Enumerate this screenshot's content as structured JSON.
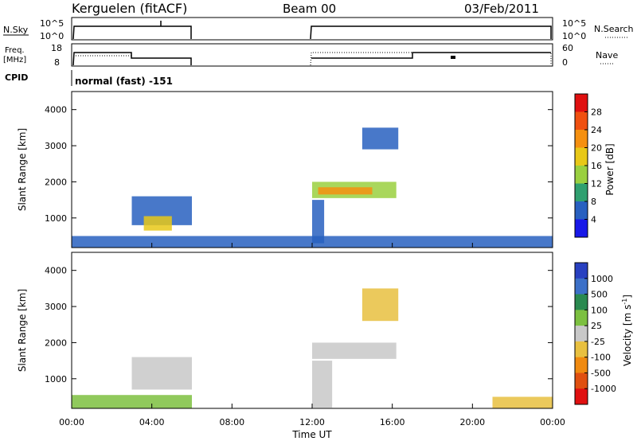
{
  "header": {
    "station": "Kerguelen (fitACF)",
    "beam": "Beam 00",
    "date": "03/Feb/2011"
  },
  "panels": {
    "nsky_label": "N.Sky",
    "nsky_ticks": [
      "10^5",
      "10^0"
    ],
    "nsearch_label": "N.Search",
    "nsearch_ticks": [
      "10^5",
      "10^0"
    ],
    "freq_label_1": "Freq.",
    "freq_label_2": "[MHz]",
    "freq_ticks": [
      "18",
      "8"
    ],
    "nave_label": "Nave",
    "nave_ticks": [
      "60",
      "0"
    ],
    "cpid_label": "CPID",
    "cpid_value": "normal (fast) -151"
  },
  "axes": {
    "ylabel": "Slant Range [km]",
    "yticks": [
      "1000",
      "2000",
      "3000",
      "4000"
    ],
    "xlabel": "Time UT",
    "xticks": [
      "00:00",
      "04:00",
      "08:00",
      "12:00",
      "16:00",
      "20:00",
      "00:00"
    ]
  },
  "colorbars": {
    "power_label": "Power [dB]",
    "power_ticks": [
      "28",
      "24",
      "20",
      "16",
      "12",
      "8",
      "4"
    ],
    "power_colors": [
      "#e01010",
      "#f05010",
      "#f59010",
      "#e8c818",
      "#9ad040",
      "#30a070",
      "#2860c0",
      "#1818e8"
    ],
    "velocity_label_main": "Velocity",
    "velocity_label_unit": "[m s",
    "velocity_label_exp": "-1",
    "velocity_label_close": "]",
    "velocity_ticks": [
      "1000",
      "500",
      "100",
      "25",
      "-25",
      "-100",
      "-500",
      "-1000"
    ],
    "velocity_colors": [
      "#2840c0",
      "#3c70c8",
      "#2a8a50",
      "#7cc040",
      "#c8c8c8",
      "#e8c040",
      "#f08a10",
      "#e05010",
      "#e01010"
    ]
  },
  "chart_data": [
    {
      "type": "heatmap",
      "title": "Power [dB]",
      "xlabel": "Time UT",
      "ylabel": "Slant Range [km]",
      "xlim": [
        0,
        24
      ],
      "ylim": [
        180,
        4500
      ],
      "colorbar_range": [
        0,
        30
      ],
      "regions": [
        {
          "t0": 3.0,
          "t1": 6.0,
          "r0": 800,
          "r1": 1600,
          "value": 6
        },
        {
          "t0": 3.6,
          "t1": 5.0,
          "r0": 650,
          "r1": 1050,
          "value": 18
        },
        {
          "t0": 12.0,
          "t1": 16.2,
          "r0": 1550,
          "r1": 2000,
          "value": 14
        },
        {
          "t0": 12.3,
          "t1": 15.0,
          "r0": 1650,
          "r1": 1850,
          "value": 20
        },
        {
          "t0": 14.5,
          "t1": 16.3,
          "r0": 2900,
          "r1": 3500,
          "value": 6
        },
        {
          "t0": 12.0,
          "t1": 12.6,
          "r0": 300,
          "r1": 1500,
          "value": 5
        },
        {
          "t0": 0.0,
          "t1": 24.0,
          "r0": 180,
          "r1": 500,
          "value": 5
        }
      ]
    },
    {
      "type": "heatmap",
      "title": "Velocity [m s-1]",
      "xlabel": "Time UT",
      "ylabel": "Slant Range [km]",
      "xlim": [
        0,
        24
      ],
      "ylim": [
        180,
        4500
      ],
      "colorbar_range": [
        -1000,
        1000
      ],
      "regions": [
        {
          "t0": 3.0,
          "t1": 6.0,
          "r0": 700,
          "r1": 1600,
          "value": 0
        },
        {
          "t0": 0.0,
          "t1": 6.0,
          "r0": 180,
          "r1": 550,
          "value": 60
        },
        {
          "t0": 12.0,
          "t1": 16.2,
          "r0": 1550,
          "r1": 2000,
          "value": 0
        },
        {
          "t0": 14.5,
          "t1": 16.3,
          "r0": 2600,
          "r1": 3500,
          "value": -100
        },
        {
          "t0": 12.0,
          "t1": 13.0,
          "r0": 200,
          "r1": 1500,
          "value": 0
        },
        {
          "t0": 21.0,
          "t1": 24.0,
          "r0": 180,
          "r1": 500,
          "value": -100
        }
      ]
    }
  ]
}
